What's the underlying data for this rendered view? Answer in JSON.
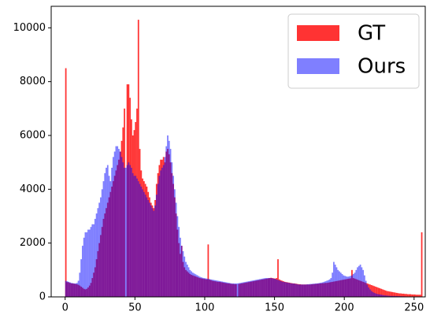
{
  "chart_data": {
    "type": "histogram",
    "bins": [
      0,
      1,
      2,
      3,
      4,
      5,
      6,
      7,
      8,
      9,
      10,
      11,
      12,
      13,
      14,
      15,
      16,
      17,
      18,
      19,
      20,
      21,
      22,
      23,
      24,
      25,
      26,
      27,
      28,
      29,
      30,
      31,
      32,
      33,
      34,
      35,
      36,
      37,
      38,
      39,
      40,
      41,
      42,
      43,
      44,
      45,
      46,
      47,
      48,
      49,
      50,
      51,
      52,
      53,
      54,
      55,
      56,
      57,
      58,
      59,
      60,
      61,
      62,
      63,
      64,
      65,
      66,
      67,
      68,
      69,
      70,
      71,
      72,
      73,
      74,
      75,
      76,
      77,
      78,
      79,
      80,
      81,
      82,
      83,
      84,
      85,
      86,
      87,
      88,
      89,
      90,
      91,
      92,
      93,
      94,
      95,
      96,
      97,
      98,
      99,
      100,
      101,
      102,
      103,
      104,
      105,
      106,
      107,
      108,
      109,
      110,
      111,
      112,
      113,
      114,
      115,
      116,
      117,
      118,
      119,
      120,
      121,
      122,
      123,
      124,
      125,
      126,
      127,
      128,
      129,
      130,
      131,
      132,
      133,
      134,
      135,
      136,
      137,
      138,
      139,
      140,
      141,
      142,
      143,
      144,
      145,
      146,
      147,
      148,
      149,
      150,
      151,
      152,
      153,
      154,
      155,
      156,
      157,
      158,
      159,
      160,
      161,
      162,
      163,
      164,
      165,
      166,
      167,
      168,
      169,
      170,
      171,
      172,
      173,
      174,
      175,
      176,
      177,
      178,
      179,
      180,
      181,
      182,
      183,
      184,
      185,
      186,
      187,
      188,
      189,
      190,
      191,
      192,
      193,
      194,
      195,
      196,
      197,
      198,
      199,
      200,
      201,
      202,
      203,
      204,
      205,
      206,
      207,
      208,
      209,
      210,
      211,
      212,
      213,
      214,
      215,
      216,
      217,
      218,
      219,
      220,
      221,
      222,
      223,
      224,
      225,
      226,
      227,
      228,
      229,
      230,
      231,
      232,
      233,
      234,
      235,
      236,
      237,
      238,
      239,
      240,
      241,
      242,
      243,
      244,
      245,
      246,
      247,
      248,
      249,
      250,
      251,
      252,
      253,
      254,
      255,
      256
    ],
    "series": [
      {
        "name": "GT",
        "color": "#ff0000",
        "alpha": 0.8,
        "values": [
          8500,
          550,
          540,
          520,
          500,
          500,
          490,
          480,
          470,
          450,
          420,
          380,
          340,
          300,
          280,
          300,
          350,
          420,
          520,
          700,
          900,
          1100,
          1400,
          1700,
          2000,
          2300,
          2600,
          2900,
          3100,
          3300,
          3500,
          3700,
          3900,
          4100,
          4300,
          4500,
          4700,
          4900,
          5100,
          5400,
          5800,
          6300,
          7000,
          0,
          7900,
          7900,
          7400,
          6600,
          6000,
          6200,
          6500,
          7000,
          10300,
          5500,
          4700,
          4400,
          4300,
          4200,
          4100,
          3900,
          3700,
          3500,
          3400,
          3300,
          3600,
          4200,
          4600,
          4900,
          5100,
          5100,
          5200,
          5000,
          5400,
          5500,
          5300,
          5000,
          4600,
          4200,
          3700,
          3100,
          2500,
          2000,
          1600,
          1900,
          1300,
          1100,
          1000,
          950,
          900,
          850,
          820,
          800,
          780,
          760,
          740,
          720,
          700,
          690,
          680,
          670,
          660,
          650,
          1950,
          640,
          620,
          600,
          590,
          580,
          570,
          560,
          560,
          550,
          540,
          530,
          520,
          510,
          500,
          500,
          490,
          480,
          480,
          470,
          470,
          0,
          480,
          490,
          500,
          510,
          520,
          530,
          540,
          550,
          560,
          570,
          580,
          590,
          600,
          610,
          620,
          630,
          640,
          650,
          660,
          670,
          680,
          690,
          700,
          710,
          700,
          690,
          680,
          700,
          1400,
          650,
          620,
          600,
          580,
          560,
          550,
          540,
          530,
          520,
          510,
          500,
          500,
          490,
          480,
          470,
          470,
          460,
          460,
          460,
          460,
          460,
          460,
          460,
          470,
          470,
          480,
          480,
          490,
          490,
          500,
          500,
          510,
          510,
          520,
          520,
          530,
          540,
          550,
          560,
          570,
          580,
          590,
          600,
          610,
          620,
          630,
          640,
          650,
          660,
          670,
          680,
          690,
          1000,
          700,
          680,
          660,
          640,
          620,
          600,
          580,
          560,
          540,
          520,
          500,
          480,
          460,
          440,
          420,
          400,
          380,
          360,
          340,
          320,
          300,
          280,
          260,
          240,
          220,
          210,
          200,
          190,
          180,
          170,
          160,
          150,
          140,
          130,
          130,
          120,
          120,
          110,
          110,
          100,
          100,
          100,
          90,
          90,
          90,
          80,
          80,
          80,
          80,
          2400
        ]
      },
      {
        "name": "Ours",
        "color": "#0000ff",
        "alpha": 0.5,
        "values": [
          600,
          580,
          560,
          540,
          520,
          510,
          500,
          500,
          520,
          600,
          900,
          1400,
          1900,
          2200,
          2400,
          2400,
          2500,
          2500,
          2600,
          2700,
          2700,
          2900,
          3100,
          3300,
          3500,
          3700,
          4000,
          4300,
          4600,
          4800,
          4900,
          4500,
          4300,
          4800,
          5200,
          5400,
          5600,
          5600,
          5500,
          5400,
          5200,
          5000,
          4800,
          4800,
          4900,
          5000,
          4900,
          4800,
          4600,
          4500,
          4500,
          4400,
          4300,
          4200,
          4100,
          4000,
          3900,
          3800,
          3700,
          3600,
          3500,
          3400,
          3300,
          3200,
          3400,
          3800,
          4200,
          4500,
          4700,
          4800,
          4900,
          5200,
          5600,
          6000,
          5800,
          5500,
          5000,
          4500,
          4000,
          3500,
          3000,
          2600,
          2200,
          1900,
          1700,
          1500,
          1300,
          1200,
          1100,
          1000,
          950,
          900,
          870,
          840,
          810,
          780,
          750,
          730,
          710,
          700,
          690,
          680,
          670,
          660,
          650,
          640,
          630,
          620,
          610,
          600,
          590,
          580,
          570,
          560,
          550,
          540,
          530,
          520,
          510,
          500,
          500,
          500,
          500,
          500,
          510,
          520,
          530,
          540,
          550,
          560,
          570,
          580,
          590,
          600,
          610,
          620,
          630,
          640,
          650,
          660,
          670,
          680,
          690,
          700,
          700,
          700,
          700,
          700,
          690,
          680,
          670,
          650,
          630,
          610,
          590,
          570,
          560,
          550,
          540,
          530,
          520,
          510,
          500,
          500,
          490,
          480,
          470,
          460,
          460,
          460,
          460,
          460,
          460,
          470,
          470,
          480,
          480,
          490,
          490,
          500,
          500,
          510,
          520,
          530,
          540,
          560,
          580,
          600,
          620,
          650,
          700,
          900,
          1300,
          1200,
          1100,
          1000,
          950,
          900,
          850,
          800,
          780,
          760,
          750,
          760,
          780,
          800,
          850,
          900,
          1000,
          1100,
          1150,
          1200,
          1100,
          1000,
          800,
          600,
          450,
          350,
          280,
          220,
          180,
          150,
          130,
          110,
          100,
          90,
          80,
          70,
          60,
          55,
          50,
          45,
          40,
          38,
          36,
          34,
          32,
          30,
          28,
          26,
          24,
          22,
          20,
          18,
          16,
          14,
          12,
          10,
          8,
          6,
          5,
          4,
          3,
          2,
          1,
          0
        ]
      }
    ],
    "xlim": [
      -10,
      258
    ],
    "ylim": [
      0,
      10800
    ],
    "xticks": [
      0,
      50,
      100,
      150,
      200,
      250
    ],
    "yticks": [
      0,
      2000,
      4000,
      6000,
      8000,
      10000
    ],
    "legend": "upper right"
  }
}
